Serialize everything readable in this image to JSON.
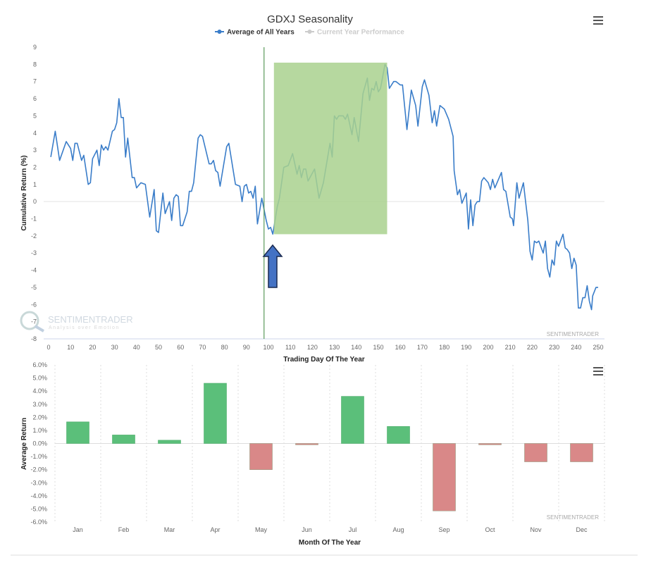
{
  "chart_data": [
    {
      "type": "line",
      "title": "GDXJ Seasonality",
      "legend": [
        "Average of All Years",
        "Current Year Performance"
      ],
      "legend_placement": "top-center",
      "xlabel": "Trading Day Of The Year",
      "ylabel": "Cumulative Return (%)",
      "xlim": [
        0,
        250
      ],
      "ylim": [
        -8,
        9
      ],
      "xticks": [
        0,
        10,
        20,
        30,
        40,
        50,
        60,
        70,
        80,
        90,
        100,
        110,
        120,
        130,
        140,
        150,
        160,
        170,
        180,
        190,
        200,
        210,
        220,
        230,
        240,
        250
      ],
      "yticks": [
        9,
        8,
        7,
        6,
        5,
        4,
        3,
        2,
        1,
        0,
        -1,
        -2,
        -3,
        -4,
        -5,
        -6,
        -7,
        -8
      ],
      "watermark": "SENTIMENTRADER",
      "logo_text": "SENTIMENTRADER Analysis over Emotion",
      "highlight": {
        "x": [
          102.5,
          154
        ],
        "y": [
          -1.9,
          8.1
        ],
        "color": "#a9d18e"
      },
      "marker_line_day": 98,
      "series": [
        {
          "name": "Average of All Years",
          "color": "#3a7dc9",
          "x": [
            1,
            3,
            5,
            8,
            10,
            11,
            12,
            13,
            15,
            16,
            18,
            19,
            20,
            22,
            23,
            24,
            25,
            26,
            27,
            29,
            30,
            31,
            32,
            33,
            34,
            35,
            36,
            38,
            39,
            40,
            42,
            44,
            46,
            48,
            49,
            50,
            52,
            53,
            55,
            56,
            57,
            58,
            59,
            60,
            61,
            63,
            64,
            65,
            66,
            68,
            69,
            70,
            73,
            74,
            75,
            76,
            77,
            78,
            81,
            82,
            85,
            87,
            88,
            89,
            90,
            91,
            92,
            93,
            94,
            95,
            97,
            99,
            100,
            101,
            102,
            104,
            105,
            107,
            109,
            111,
            113,
            114,
            115,
            116,
            117,
            118,
            121,
            123,
            125,
            128,
            129,
            130,
            131,
            132,
            134,
            135,
            136,
            138,
            139,
            141,
            143,
            145,
            146,
            147,
            148,
            149,
            150,
            151,
            153,
            154,
            155,
            157,
            158,
            160,
            161,
            163,
            165,
            167,
            168,
            170,
            171,
            173,
            174.5,
            175.5,
            176.5,
            178,
            180,
            182,
            184,
            184.5,
            186,
            187,
            188,
            190,
            191,
            192,
            193,
            194,
            195,
            196,
            197,
            198,
            200,
            201,
            202,
            203,
            205,
            206,
            207,
            208,
            210,
            211,
            211.5,
            213,
            214,
            216,
            217,
            218,
            219,
            220,
            221,
            222,
            223,
            225,
            226,
            227,
            228,
            229,
            230,
            231,
            232,
            234,
            235,
            236,
            237,
            238,
            239,
            240,
            241,
            242,
            243,
            244,
            245,
            246,
            247,
            247.5,
            249,
            250
          ],
          "y": [
            2.6,
            4.1,
            2.4,
            3.5,
            3.1,
            2.4,
            3.4,
            3.4,
            2.4,
            2.7,
            1.0,
            1.1,
            2.5,
            3.0,
            2.1,
            3.3,
            3.0,
            3.2,
            3.0,
            4.1,
            4.2,
            4.6,
            6.0,
            4.9,
            4.9,
            2.6,
            3.7,
            1.4,
            1.4,
            0.8,
            1.1,
            1.0,
            -0.9,
            0.7,
            -1.7,
            -1.8,
            0.5,
            -0.7,
            0.0,
            -1.1,
            0.2,
            0.4,
            0.3,
            -1.4,
            -1.4,
            -0.6,
            0.6,
            0.6,
            1.1,
            3.7,
            3.9,
            3.8,
            2.2,
            2.2,
            2.4,
            1.8,
            1.7,
            0.9,
            3.2,
            3.4,
            1.0,
            0.9,
            0.0,
            0.9,
            1.0,
            0.5,
            0.6,
            0.2,
            0.9,
            -1.3,
            0.2,
            -1.1,
            -1.6,
            -1.5,
            -1.9,
            -0.3,
            0.2,
            2.0,
            2.1,
            2.8,
            1.6,
            2.1,
            1.4,
            1.9,
            1.9,
            1.2,
            1.9,
            0.2,
            1.1,
            3.4,
            2.6,
            5.0,
            4.8,
            5.0,
            5.0,
            4.8,
            5.1,
            3.9,
            4.9,
            3.5,
            6.3,
            7.2,
            5.9,
            6.6,
            6.5,
            7.0,
            6.4,
            6.6,
            8.0,
            7.8,
            6.6,
            7.0,
            7.0,
            6.8,
            6.8,
            4.2,
            6.5,
            5.6,
            4.4,
            6.7,
            7.1,
            6.2,
            4.6,
            5.3,
            4.4,
            5.6,
            5.4,
            4.8,
            3.8,
            1.8,
            0.4,
            0.7,
            -0.1,
            0.5,
            -1.6,
            0.1,
            -1.4,
            -0.2,
            0.0,
            0.0,
            1.2,
            1.4,
            1.1,
            0.7,
            1.3,
            0.8,
            1.4,
            1.7,
            0.7,
            0.6,
            -0.9,
            -1.0,
            -1.4,
            1.1,
            0.2,
            1.1,
            0.0,
            -1.1,
            -2.9,
            -3.4,
            -2.3,
            -2.4,
            -2.3,
            -3.0,
            -2.3,
            -3.9,
            -4.4,
            -3.4,
            -3.7,
            -2.3,
            -2.6,
            -1.9,
            -2.7,
            -2.8,
            -3.0,
            -3.9,
            -3.3,
            -3.7,
            -6.2,
            -6.2,
            -5.6,
            -5.6,
            -4.9,
            -5.8,
            -6.3,
            -5.5,
            -5.0,
            -5.0
          ]
        }
      ]
    },
    {
      "type": "bar",
      "title": "",
      "xlabel": "Month Of The Year",
      "ylabel": "Average Return",
      "ylim": [
        -6,
        6
      ],
      "yticks": [
        "6.0%",
        "5.0%",
        "4.0%",
        "3.0%",
        "2.0%",
        "1.0%",
        "0.0%",
        "-1.0%",
        "-2.0%",
        "-3.0%",
        "-4.0%",
        "-5.0%",
        "-6.0%"
      ],
      "categories": [
        "Jan",
        "Feb",
        "Mar",
        "Apr",
        "May",
        "Jun",
        "Jul",
        "Aug",
        "Sep",
        "Oct",
        "Nov",
        "Dec"
      ],
      "values": [
        1.65,
        0.65,
        0.25,
        4.6,
        -2.0,
        -0.1,
        3.6,
        1.3,
        -5.15,
        -0.1,
        -1.4,
        -1.4
      ],
      "positive_color": "#5bbf7a",
      "negative_color": "#d98888",
      "watermark": "SENTIMENTRADER"
    }
  ]
}
